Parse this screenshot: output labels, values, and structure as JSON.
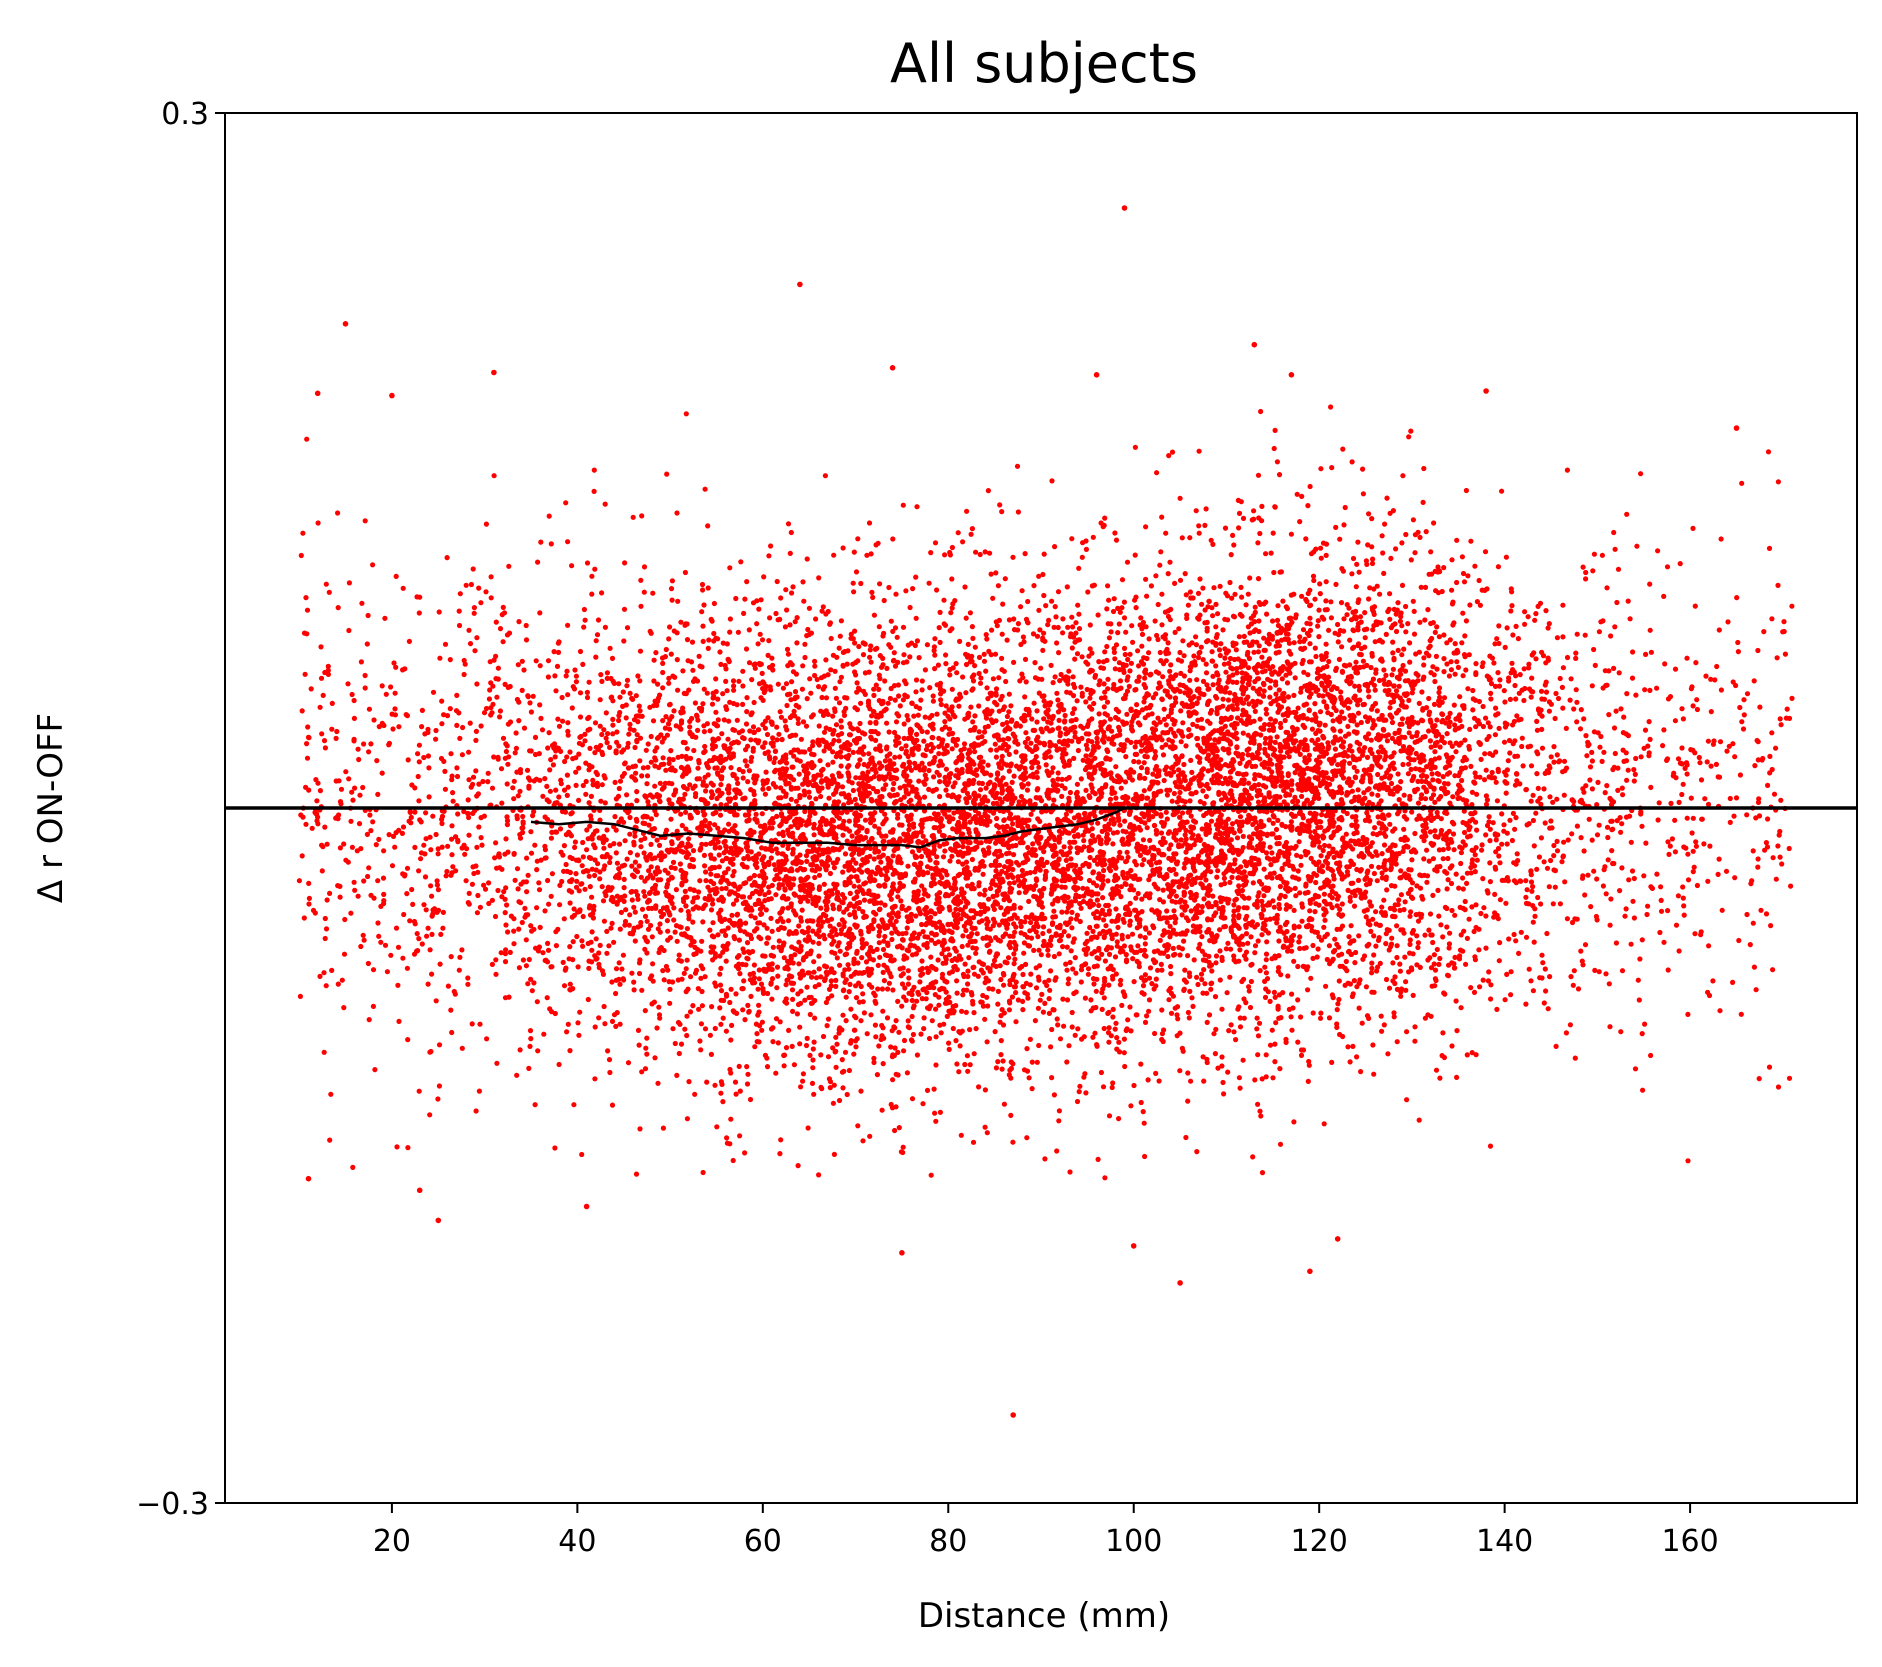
{
  "chart_data": {
    "type": "scatter",
    "title": "All subjects",
    "xlabel": "Distance (mm)",
    "ylabel": "Δ r ON-OFF",
    "xlim": [
      2,
      178
    ],
    "ylim": [
      -0.3,
      0.3
    ],
    "xticks": [
      20,
      40,
      60,
      80,
      100,
      120,
      140,
      160
    ],
    "yticks": [
      -0.3,
      0.3
    ],
    "ytick_labels": [
      "−0.3",
      "0.3"
    ],
    "grid": false,
    "series": [
      {
        "kind": "scatter",
        "color": "#ff0000",
        "point_count_estimate": 12000,
        "distribution": {
          "x_range": [
            10,
            171
          ],
          "center_line": [
            [
              12,
              0.0
            ],
            [
              20,
              -0.002
            ],
            [
              30,
              -0.006
            ],
            [
              40,
              -0.01
            ],
            [
              50,
              -0.014
            ],
            [
              60,
              -0.016
            ],
            [
              70,
              -0.017
            ],
            [
              80,
              -0.015
            ],
            [
              90,
              -0.01
            ],
            [
              100,
              -0.004
            ],
            [
              110,
              0.004
            ],
            [
              120,
              0.01
            ],
            [
              130,
              0.012
            ],
            [
              140,
              0.01
            ],
            [
              150,
              0.006
            ],
            [
              160,
              0.004
            ],
            [
              170,
              0.002
            ]
          ],
          "spread_sd": 0.05
        },
        "outliers": [
          [
            99,
            0.259
          ],
          [
            64,
            0.226
          ],
          [
            15,
            0.209
          ],
          [
            12,
            0.179
          ],
          [
            20,
            0.178
          ],
          [
            31,
            0.188
          ],
          [
            74,
            0.19
          ],
          [
            96,
            0.187
          ],
          [
            113,
            0.2
          ],
          [
            117,
            0.187
          ],
          [
            138,
            0.18
          ],
          [
            165,
            0.164
          ],
          [
            11,
            -0.16
          ],
          [
            23,
            -0.165
          ],
          [
            25,
            -0.178
          ],
          [
            41,
            -0.172
          ],
          [
            75,
            -0.192
          ],
          [
            100,
            -0.189
          ],
          [
            105,
            -0.205
          ],
          [
            119,
            -0.2
          ],
          [
            122,
            -0.186
          ],
          [
            87,
            -0.262
          ]
        ]
      },
      {
        "kind": "line",
        "color": "#000000",
        "points": [
          [
            35,
            -0.006
          ],
          [
            38,
            -0.007
          ],
          [
            41,
            -0.006
          ],
          [
            44,
            -0.007
          ],
          [
            47,
            -0.01
          ],
          [
            49,
            -0.012
          ],
          [
            52,
            -0.011
          ],
          [
            55,
            -0.012
          ],
          [
            58,
            -0.013
          ],
          [
            61,
            -0.015
          ],
          [
            64,
            -0.015
          ],
          [
            67,
            -0.015
          ],
          [
            70,
            -0.016
          ],
          [
            73,
            -0.016
          ],
          [
            75,
            -0.016
          ],
          [
            77,
            -0.017
          ],
          [
            79,
            -0.014
          ],
          [
            81,
            -0.013
          ],
          [
            84,
            -0.013
          ],
          [
            86,
            -0.012
          ],
          [
            88,
            -0.01
          ],
          [
            90,
            -0.009
          ],
          [
            92,
            -0.008
          ],
          [
            94,
            -0.007
          ],
          [
            96,
            -0.005
          ],
          [
            98,
            -0.002
          ],
          [
            99,
            0.0
          ]
        ]
      },
      {
        "kind": "hline",
        "color": "#000000",
        "y": 0.0
      }
    ]
  }
}
